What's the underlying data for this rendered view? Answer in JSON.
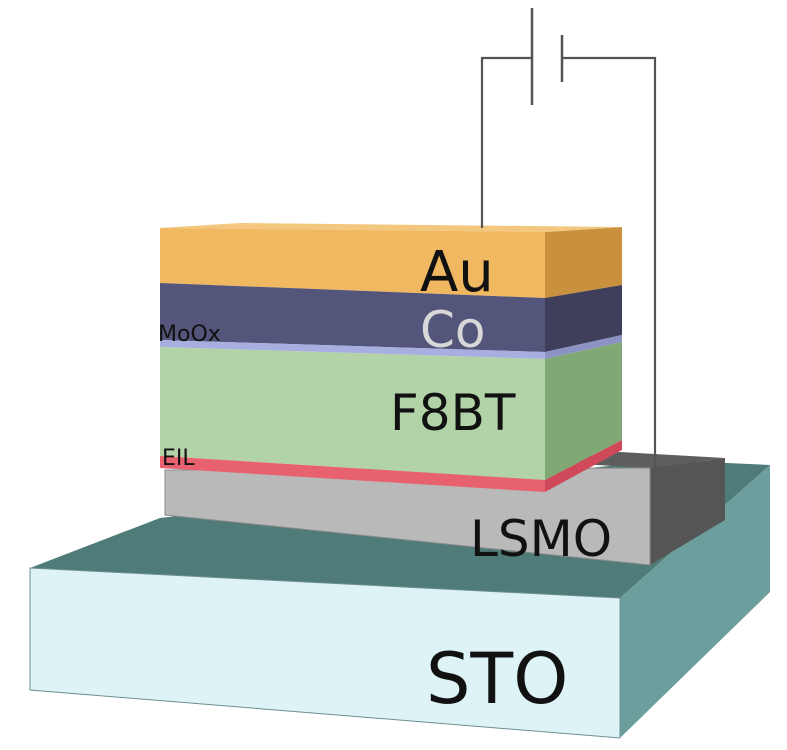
{
  "layers": {
    "au": {
      "label": "Au",
      "color": "#f0b860"
    },
    "co": {
      "label": "Co",
      "color": "#54557a"
    },
    "mooxl": {
      "label": "MoOx",
      "color": "#a8aee0"
    },
    "f8bt": {
      "label": "F8BT",
      "color": "#b2d3a8"
    },
    "eil": {
      "label": "EIL",
      "color": "#e8616e"
    },
    "lsmo": {
      "label": "LSMO",
      "color": "#b9b9b9"
    },
    "sto": {
      "label": "STO",
      "color": "#def3f6"
    }
  },
  "battery": {
    "symbol": "battery-symbol"
  }
}
